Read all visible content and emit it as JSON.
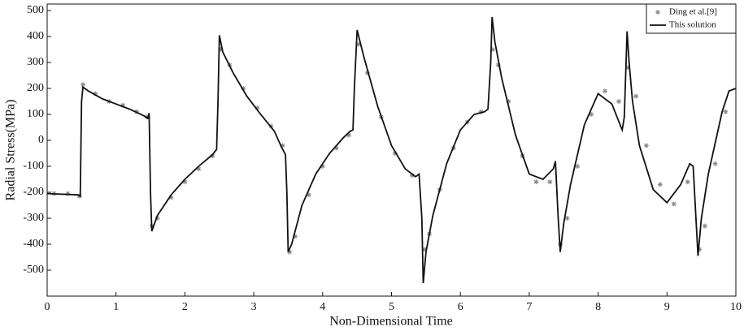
{
  "chart_data": {
    "type": "line",
    "x_label": "Non-Dimensional Time",
    "y_label": "Radial Stress(MPa)",
    "xlim": [
      0,
      10
    ],
    "ylim": [
      -600,
      525
    ],
    "xticks": [
      0,
      1,
      2,
      3,
      4,
      5,
      6,
      7,
      8,
      9,
      10
    ],
    "yticks": [
      -500,
      -400,
      -300,
      -200,
      -100,
      0,
      100,
      200,
      300,
      400,
      500
    ],
    "legend": "upper right",
    "series": [
      {
        "name": "Ding et al.[9]",
        "type": "scatter",
        "color": "#888888",
        "x": [
          0.1,
          0.3,
          0.47,
          0.52,
          0.7,
          0.9,
          1.1,
          1.3,
          1.45,
          1.52,
          1.6,
          1.8,
          2.0,
          2.2,
          2.4,
          2.52,
          2.65,
          2.85,
          3.05,
          3.25,
          3.42,
          3.52,
          3.6,
          3.8,
          4.0,
          4.2,
          4.38,
          4.52,
          4.65,
          4.85,
          5.05,
          5.3,
          5.48,
          5.55,
          5.7,
          5.9,
          6.1,
          6.3,
          6.47,
          6.55,
          6.7,
          6.9,
          7.1,
          7.3,
          7.45,
          7.55,
          7.7,
          7.9,
          8.1,
          8.3,
          8.43,
          8.55,
          8.7,
          8.9,
          9.1,
          9.3,
          9.47,
          9.55,
          9.7,
          9.85
        ],
        "values": [
          -205,
          -205,
          -215,
          215,
          180,
          150,
          135,
          110,
          90,
          -330,
          -300,
          -220,
          -160,
          -110,
          -60,
          350,
          290,
          200,
          125,
          55,
          -20,
          -430,
          -370,
          -210,
          -100,
          -30,
          20,
          370,
          260,
          90,
          -50,
          -135,
          -420,
          -360,
          -190,
          -30,
          70,
          110,
          350,
          290,
          150,
          -60,
          -160,
          -160,
          -400,
          -300,
          -100,
          100,
          190,
          150,
          280,
          170,
          -20,
          -170,
          -245,
          -160,
          -420,
          -330,
          -90,
          110
        ]
      },
      {
        "name": "This solution",
        "type": "line",
        "color": "#111111",
        "x": [
          0,
          0.45,
          0.48,
          0.5,
          0.52,
          0.6,
          0.8,
          1.0,
          1.2,
          1.4,
          1.46,
          1.48,
          1.5,
          1.52,
          1.6,
          1.8,
          2.0,
          2.2,
          2.4,
          2.46,
          2.48,
          2.5,
          2.55,
          2.7,
          2.9,
          3.1,
          3.3,
          3.4,
          3.46,
          3.48,
          3.5,
          3.55,
          3.7,
          3.9,
          4.1,
          4.3,
          4.4,
          4.44,
          4.46,
          4.5,
          4.6,
          4.8,
          5.0,
          5.2,
          5.35,
          5.4,
          5.44,
          5.46,
          5.5,
          5.6,
          5.8,
          6.0,
          6.2,
          6.35,
          6.4,
          6.44,
          6.46,
          6.5,
          6.6,
          6.8,
          7.0,
          7.2,
          7.35,
          7.38,
          7.42,
          7.45,
          7.5,
          7.6,
          7.8,
          8.0,
          8.2,
          8.35,
          8.38,
          8.42,
          8.45,
          8.5,
          8.6,
          8.8,
          9.0,
          9.2,
          9.33,
          9.38,
          9.42,
          9.45,
          9.5,
          9.6,
          9.8,
          9.9,
          10
        ],
        "values": [
          -205,
          -210,
          -215,
          150,
          205,
          190,
          160,
          140,
          120,
          95,
          85,
          105,
          -200,
          -350,
          -290,
          -210,
          -150,
          -100,
          -55,
          -35,
          150,
          405,
          340,
          260,
          170,
          100,
          35,
          -25,
          -55,
          -200,
          -430,
          -400,
          -250,
          -130,
          -50,
          10,
          35,
          40,
          200,
          425,
          320,
          130,
          -20,
          -110,
          -140,
          -130,
          -300,
          -550,
          -430,
          -290,
          -90,
          40,
          100,
          110,
          120,
          300,
          475,
          380,
          240,
          20,
          -130,
          -150,
          -110,
          -80,
          -300,
          -430,
          -320,
          -170,
          60,
          180,
          140,
          40,
          90,
          420,
          300,
          150,
          -20,
          -190,
          -240,
          -170,
          -90,
          -100,
          -300,
          -445,
          -300,
          -130,
          110,
          190,
          200
        ]
      }
    ]
  }
}
